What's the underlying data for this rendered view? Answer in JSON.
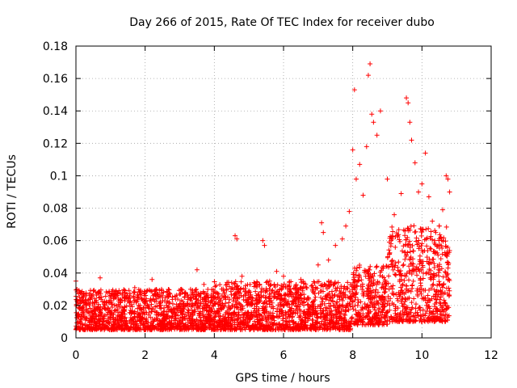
{
  "chart_data": {
    "type": "scatter",
    "title": "Day 266 of 2015, Rate Of TEC Index for receiver dubo",
    "xlabel": "GPS time / hours",
    "ylabel": "ROTI / TECUs",
    "xlim": [
      0,
      12
    ],
    "ylim": [
      0,
      0.18
    ],
    "xticks": [
      0,
      2,
      4,
      6,
      8,
      10,
      12
    ],
    "yticks": [
      0,
      0.02,
      0.04,
      0.06,
      0.08,
      0.1,
      0.12,
      0.14,
      0.16,
      0.18
    ],
    "grid": true,
    "marker": "+",
    "color": "#ff0000",
    "series": [
      {
        "name": "ROTI",
        "x": [
          0.0,
          0.05,
          0.1,
          0.2,
          0.3,
          0.4,
          0.5,
          0.6,
          0.7,
          0.8,
          1.0,
          1.2,
          1.5,
          1.7,
          2.0,
          2.2,
          2.5,
          2.8,
          3.0,
          3.3,
          3.5,
          3.7,
          4.0,
          4.3,
          4.5,
          4.6,
          4.65,
          4.8,
          5.0,
          5.2,
          5.4,
          5.45,
          5.6,
          5.8,
          6.0,
          6.2,
          6.5,
          6.8,
          7.0,
          7.1,
          7.15,
          7.3,
          7.5,
          7.7,
          7.8,
          7.9,
          8.0,
          8.05,
          8.1,
          8.2,
          8.3,
          8.4,
          8.45,
          8.5,
          8.55,
          8.6,
          8.7,
          8.8,
          9.0,
          9.2,
          9.4,
          9.55,
          9.6,
          9.65,
          9.7,
          9.8,
          9.9,
          10.0,
          10.1,
          10.2,
          10.3,
          10.4,
          10.5,
          10.6,
          10.7,
          10.75,
          10.8
        ],
        "y": [
          0.035,
          0.022,
          0.018,
          0.026,
          0.02,
          0.024,
          0.029,
          0.022,
          0.037,
          0.019,
          0.025,
          0.028,
          0.024,
          0.031,
          0.022,
          0.036,
          0.026,
          0.021,
          0.027,
          0.024,
          0.042,
          0.033,
          0.025,
          0.027,
          0.034,
          0.063,
          0.061,
          0.038,
          0.029,
          0.032,
          0.06,
          0.057,
          0.035,
          0.041,
          0.038,
          0.03,
          0.036,
          0.032,
          0.045,
          0.071,
          0.065,
          0.048,
          0.057,
          0.061,
          0.069,
          0.078,
          0.116,
          0.153,
          0.098,
          0.107,
          0.088,
          0.118,
          0.162,
          0.169,
          0.138,
          0.133,
          0.125,
          0.14,
          0.098,
          0.076,
          0.089,
          0.148,
          0.145,
          0.133,
          0.122,
          0.108,
          0.09,
          0.095,
          0.114,
          0.087,
          0.072,
          0.065,
          0.069,
          0.079,
          0.1,
          0.098,
          0.09
        ],
        "dense_band": [
          {
            "x_from": 0.0,
            "x_to": 2.0,
            "y_min": 0.005,
            "y_max": 0.03
          },
          {
            "x_from": 2.0,
            "x_to": 4.0,
            "y_min": 0.005,
            "y_max": 0.03
          },
          {
            "x_from": 4.0,
            "x_to": 6.0,
            "y_min": 0.005,
            "y_max": 0.035
          },
          {
            "x_from": 6.0,
            "x_to": 8.0,
            "y_min": 0.005,
            "y_max": 0.035
          },
          {
            "x_from": 8.0,
            "x_to": 9.0,
            "y_min": 0.008,
            "y_max": 0.045
          },
          {
            "x_from": 9.0,
            "x_to": 10.8,
            "y_min": 0.01,
            "y_max": 0.07
          }
        ]
      }
    ]
  }
}
